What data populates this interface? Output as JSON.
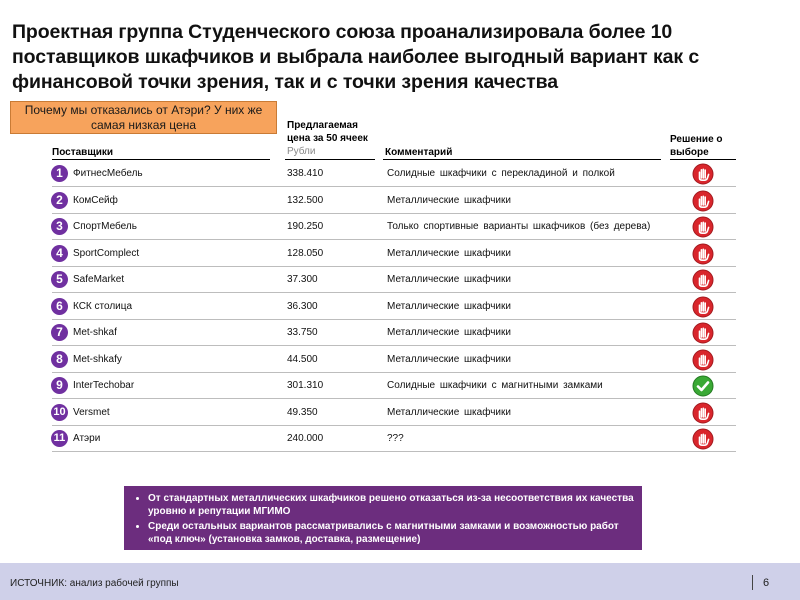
{
  "slide": {
    "title": "Проектная группа Студенческого союза проанализировала более 10 поставщиков шкафчиков и выбрала наиболее выгодный вариант как с финансовой точки зрения, так и с точки зрения качества",
    "callout": "Почему мы отказались от Атэри? У них же самая низкая цена"
  },
  "table": {
    "headers": {
      "supplier": "Поставщики",
      "price": "Предлагаемая цена за 50 ячеек",
      "price_unit": "Рубли",
      "comment": "Комментарий",
      "decision": "Решение о выборе"
    },
    "rows": [
      {
        "num": "1",
        "name": "ФитнесМебель",
        "price": "338.410",
        "comment": "Солидные шкафчики с перекладиной и полкой",
        "decision": "reject",
        "icon": "stop-hand-icon"
      },
      {
        "num": "2",
        "name": "КомСейф",
        "price": "132.500",
        "comment": "Металлические шкафчики",
        "decision": "reject",
        "icon": "stop-hand-icon"
      },
      {
        "num": "3",
        "name": "СпортМебель",
        "price": "190.250",
        "comment": "Только спортивные варианты шкафчиков (без дерева)",
        "decision": "reject",
        "icon": "stop-hand-icon"
      },
      {
        "num": "4",
        "name": "SportComplect",
        "price": "128.050",
        "comment": "Металлические шкафчики",
        "decision": "reject",
        "icon": "stop-hand-icon"
      },
      {
        "num": "5",
        "name": "SafeMarket",
        "price": "37.300",
        "comment": "Металлические шкафчики",
        "decision": "reject",
        "icon": "stop-hand-icon"
      },
      {
        "num": "6",
        "name": "КСК столица",
        "price": "36.300",
        "comment": "Металлические шкафчики",
        "decision": "reject",
        "icon": "stop-hand-icon"
      },
      {
        "num": "7",
        "name": "Met-shkaf",
        "price": "33.750",
        "comment": "Металлические шкафчики",
        "decision": "reject",
        "icon": "stop-hand-icon"
      },
      {
        "num": "8",
        "name": "Met-shkafy",
        "price": "44.500",
        "comment": "Металлические шкафчики",
        "decision": "reject",
        "icon": "stop-hand-icon"
      },
      {
        "num": "9",
        "name": "InterTechobar",
        "price": "301.310",
        "comment": "Солидные шкафчики с магнитными замками",
        "decision": "accept",
        "icon": "check-icon"
      },
      {
        "num": "10",
        "name": "Versmet",
        "price": "49.350",
        "comment": "Металлические шкафчики",
        "decision": "reject",
        "icon": "stop-hand-icon"
      },
      {
        "num": "11",
        "name": "Атэри",
        "price": "240.000",
        "comment": "???",
        "decision": "reject",
        "icon": "stop-hand-icon"
      }
    ]
  },
  "notes": [
    "От стандартных металлических шкафчиков решено отказаться из-за несоответствия их качества уровню и репутации МГИМО",
    "Среди остальных вариантов рассматривались с магнитными замками и возможностью работ «под ключ» (установка замков, доставка, размещение)"
  ],
  "footer": {
    "source": "ИСТОЧНИК: анализ рабочей группы",
    "page": "6"
  },
  "colors": {
    "accent_purple": "#7030a0",
    "notes_bg": "#6c2d7e",
    "callout_bg": "#f7a35c",
    "footer_bg": "#cfd0e9",
    "reject_red": "#d9262c",
    "accept_green": "#3aa935"
  }
}
